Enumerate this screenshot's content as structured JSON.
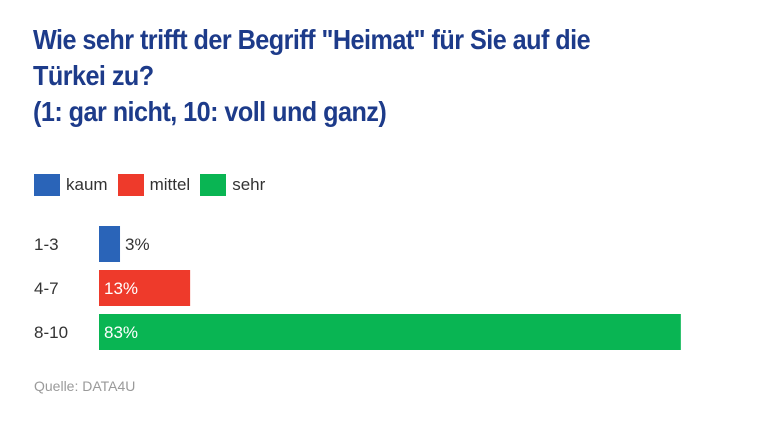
{
  "chart_data": {
    "type": "bar",
    "orientation": "horizontal",
    "title_lines": [
      "Wie sehr trifft der Begriff \"Heimat\" für Sie auf die",
      "Türkei zu?",
      "(1: gar nicht, 10: voll und ganz)"
    ],
    "categories": [
      "1-3",
      "4-7",
      "8-10"
    ],
    "values": [
      3,
      13,
      83
    ],
    "value_labels": [
      "3%",
      "13%",
      "83%"
    ],
    "bar_colors": [
      "#2a64b8",
      "#ee3a2b",
      "#09b553"
    ],
    "legend": [
      {
        "label": "kaum",
        "color": "#2a64b8"
      },
      {
        "label": "mittel",
        "color": "#ee3a2b"
      },
      {
        "label": "sehr",
        "color": "#09b553"
      }
    ],
    "legend_position": "top-left",
    "xlim": [
      0,
      100
    ],
    "grid": false
  },
  "source": "Quelle: DATA4U"
}
